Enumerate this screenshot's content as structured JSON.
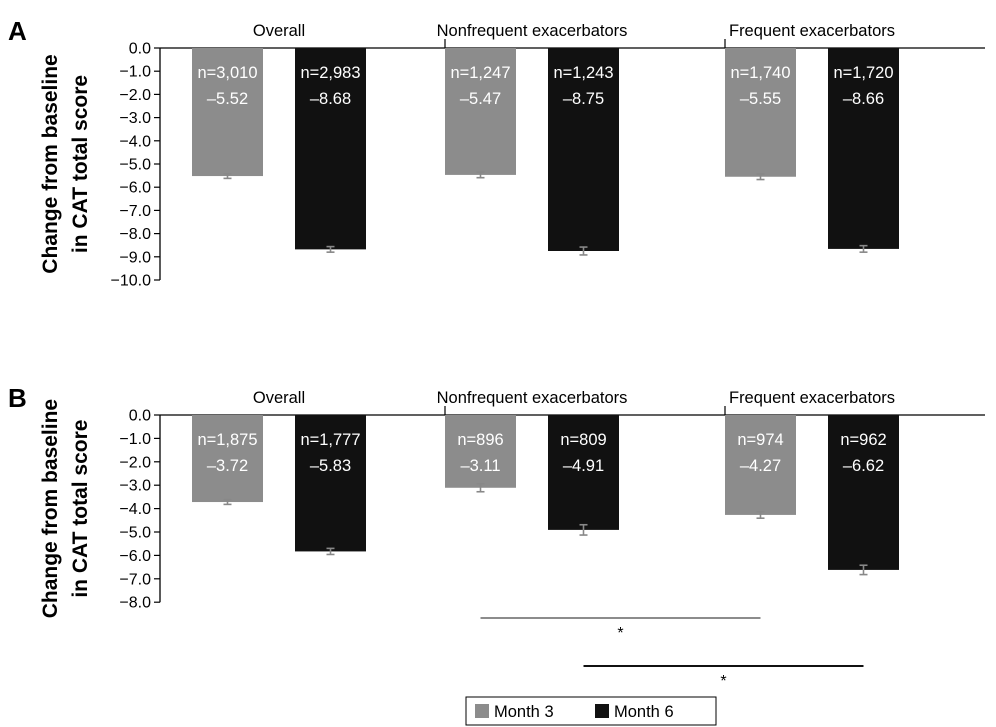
{
  "legend": {
    "month3_label": "Month 3",
    "month6_label": "Month 6"
  },
  "chart_data": [
    {
      "panel": "A",
      "type": "bar",
      "ylabel_line1": "Change from baseline",
      "ylabel_line2": "in CAT total score",
      "ylim": [
        -10.0,
        0.0
      ],
      "yticks": [
        "0.0",
        "−1.0",
        "−2.0",
        "−3.0",
        "−4.0",
        "−5.0",
        "−6.0",
        "−7.0",
        "−8.0",
        "−9.0",
        "−10.0"
      ],
      "categories": [
        "Overall",
        "Nonfrequent exacerbators",
        "Frequent exacerbators"
      ],
      "series": [
        {
          "name": "Month 3",
          "color": "#8c8c8c",
          "values": [
            -5.52,
            -5.47,
            -5.55
          ],
          "error": [
            0.1,
            0.12,
            0.12
          ],
          "n_labels": [
            "n=3,010",
            "n=1,247",
            "n=1,740"
          ],
          "value_labels": [
            "–5.52",
            "–5.47",
            "–5.55"
          ]
        },
        {
          "name": "Month 6",
          "color": "#111111",
          "values": [
            -8.68,
            -8.75,
            -8.66
          ],
          "error": [
            0.12,
            0.17,
            0.14
          ],
          "n_labels": [
            "n=2,983",
            "n=1,243",
            "n=1,720"
          ],
          "value_labels": [
            "–8.68",
            "–8.75",
            "–8.66"
          ]
        }
      ],
      "significance": []
    },
    {
      "panel": "B",
      "type": "bar",
      "ylabel_line1": "Change from baseline",
      "ylabel_line2": "in CAT total score",
      "ylim": [
        -8.0,
        0.0
      ],
      "yticks": [
        "0.0",
        "−1.0",
        "−2.0",
        "−3.0",
        "−4.0",
        "−5.0",
        "−6.0",
        "−7.0",
        "−8.0"
      ],
      "categories": [
        "Overall",
        "Nonfrequent exacerbators",
        "Frequent exacerbators"
      ],
      "series": [
        {
          "name": "Month 3",
          "color": "#8c8c8c",
          "values": [
            -3.72,
            -3.11,
            -4.27
          ],
          "error": [
            0.1,
            0.17,
            0.14
          ],
          "n_labels": [
            "n=1,875",
            "n=896",
            "n=974"
          ],
          "value_labels": [
            "–3.72",
            "–3.11",
            "–4.27"
          ]
        },
        {
          "name": "Month 6",
          "color": "#111111",
          "values": [
            -5.83,
            -4.91,
            -6.62
          ],
          "error": [
            0.13,
            0.22,
            0.2
          ],
          "n_labels": [
            "n=1,777",
            "n=809",
            "n=962"
          ],
          "value_labels": [
            "–5.83",
            "–4.91",
            "–6.62"
          ]
        }
      ],
      "significance": [
        {
          "series": "Month 3",
          "from_category": 1,
          "to_category": 2,
          "marker": "*",
          "color": "#8c8c8c"
        },
        {
          "series": "Month 6",
          "from_category": 1,
          "to_category": 2,
          "marker": "*",
          "color": "#111111"
        }
      ]
    }
  ]
}
